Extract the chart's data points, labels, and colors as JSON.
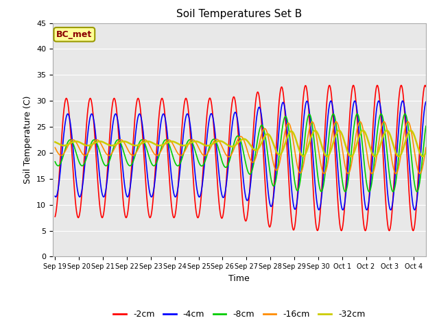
{
  "title": "Soil Temperatures Set B",
  "xlabel": "Time",
  "ylabel": "Soil Temperature (C)",
  "ylim": [
    0,
    45
  ],
  "yticks": [
    0,
    5,
    10,
    15,
    20,
    25,
    30,
    35,
    40,
    45
  ],
  "annotation": "BC_met",
  "x_tick_labels": [
    "Sep 19",
    "Sep 20",
    "Sep 21",
    "Sep 22",
    "Sep 23",
    "Sep 24",
    "Sep 25",
    "Sep 26",
    "Sep 27",
    "Sep 28",
    "Sep 29",
    "Sep 30",
    "Oct 1",
    "Oct 2",
    "Oct 3",
    "Oct 4"
  ],
  "legend_labels": [
    "-2cm",
    "-4cm",
    "-8cm",
    "-16cm",
    "-32cm"
  ],
  "legend_colors": [
    "#FF0000",
    "#0000FF",
    "#00CC00",
    "#FF8C00",
    "#CCCC00"
  ],
  "line_widths": [
    1.2,
    1.2,
    1.2,
    1.2,
    1.8
  ],
  "fig_bg_color": "#FFFFFF",
  "plot_bg_color": "#E8E8E8",
  "grid_color": "#FFFFFF"
}
